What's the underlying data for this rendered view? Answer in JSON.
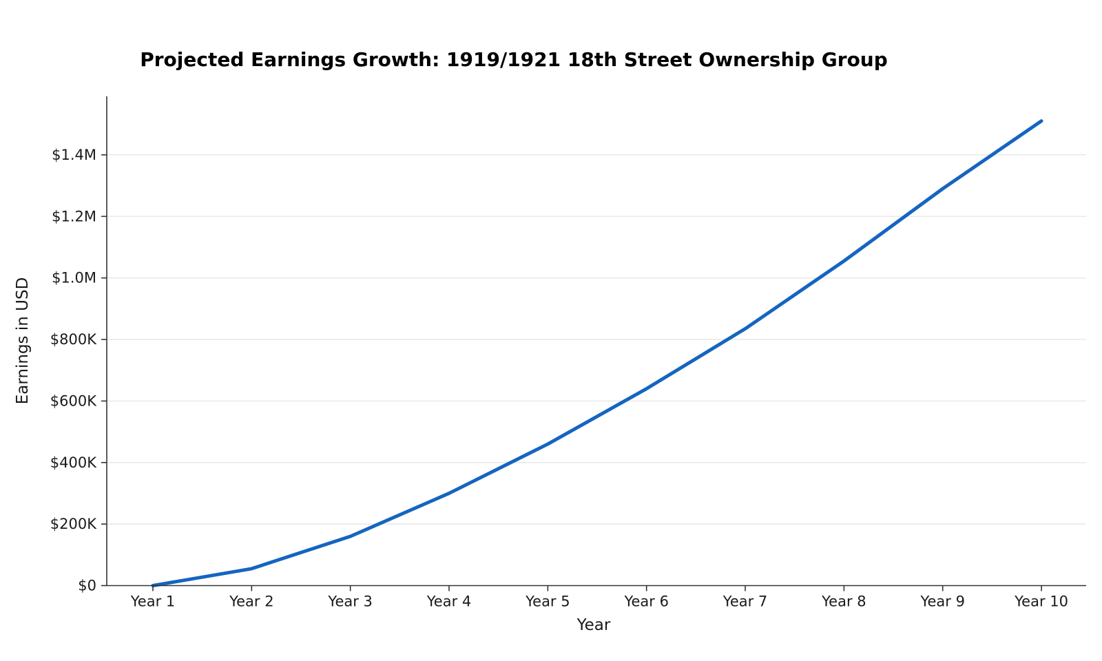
{
  "chart_data": {
    "type": "line",
    "title": "Projected Earnings Growth: 1919/1921 18th Street Ownership Group",
    "xlabel": "Year",
    "ylabel": "Earnings in USD",
    "categories": [
      "Year 1",
      "Year 2",
      "Year 3",
      "Year 4",
      "Year 5",
      "Year 6",
      "Year 7",
      "Year 8",
      "Year 9",
      "Year 10"
    ],
    "series": [
      {
        "name": "Projected earnings",
        "values": [
          0,
          55000,
          160000,
          300000,
          460000,
          640000,
          835000,
          1055000,
          1290000,
          1510000
        ]
      }
    ],
    "yticks": {
      "values": [
        0,
        200000,
        400000,
        600000,
        800000,
        1000000,
        1200000,
        1400000
      ],
      "labels": [
        "$0",
        "$200K",
        "$400K",
        "$600K",
        "$800K",
        "$1.0M",
        "$1.2M",
        "$1.4M"
      ]
    },
    "ylim": [
      0,
      1590000
    ],
    "grid": "horizontal",
    "legend": "none"
  },
  "colors": {
    "line": "#1565c0",
    "grid": "#e8e8e8",
    "axis": "#333333",
    "text": "#1a1a1a",
    "background": "#ffffff"
  }
}
